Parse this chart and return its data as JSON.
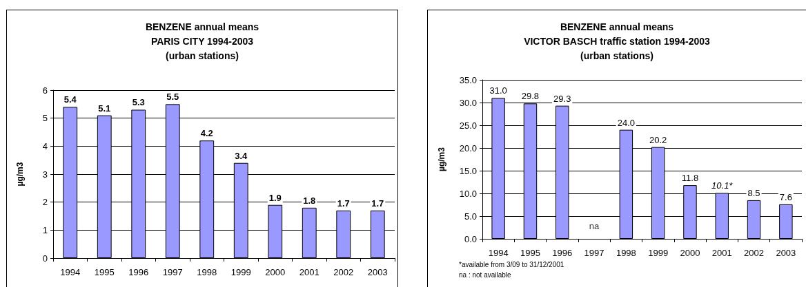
{
  "chart_data": [
    {
      "type": "bar",
      "title": "BENZENE annual means\nPARIS CITY 1994-2003\n(urban stations)",
      "ylabel": "µg/m3",
      "categories": [
        "1994",
        "1995",
        "1996",
        "1997",
        "1998",
        "1999",
        "2000",
        "2001",
        "2002",
        "2003"
      ],
      "values": [
        5.4,
        5.1,
        5.3,
        5.5,
        4.2,
        3.4,
        1.9,
        1.8,
        1.7,
        1.7
      ],
      "color": "#9999ff",
      "ylim": [
        0,
        6
      ],
      "yticks": [
        0,
        1,
        2,
        3,
        4,
        5,
        6
      ],
      "grid": "y",
      "data_labels": true
    },
    {
      "type": "bar",
      "title": "BENZENE annual means\nVICTOR BASCH traffic station 1994-2003\n(urban stations)",
      "ylabel": "µg/m3",
      "categories": [
        "1994",
        "1995",
        "1996",
        "1997",
        "1998",
        "1999",
        "2000",
        "2001",
        "2002",
        "2003"
      ],
      "values": [
        31.0,
        29.8,
        29.3,
        null,
        24.0,
        20.2,
        11.8,
        10.1,
        8.5,
        7.6
      ],
      "color": "#9999ff",
      "value_labels": [
        "31.0",
        "29.8",
        "29.3",
        "na",
        "24.0",
        "20.2",
        "11.8",
        "10.1*",
        "8.5",
        "7.6"
      ],
      "ylim": [
        0,
        35
      ],
      "yticks": [
        {
          "value": 0,
          "label": "0.0"
        },
        {
          "value": 5,
          "label": "5.0"
        },
        {
          "value": 10,
          "label": "10.0"
        },
        {
          "value": 15,
          "label": "15.0"
        },
        {
          "value": 20,
          "label": "20.0"
        },
        {
          "value": 25,
          "label": "25.0"
        },
        {
          "value": 30,
          "label": "30.0"
        },
        {
          "value": 35,
          "label": "35.0"
        }
      ],
      "grid": "y",
      "annotations": [
        "*available from 3/09 to 31/12/2001",
        "na : not available"
      ]
    }
  ]
}
